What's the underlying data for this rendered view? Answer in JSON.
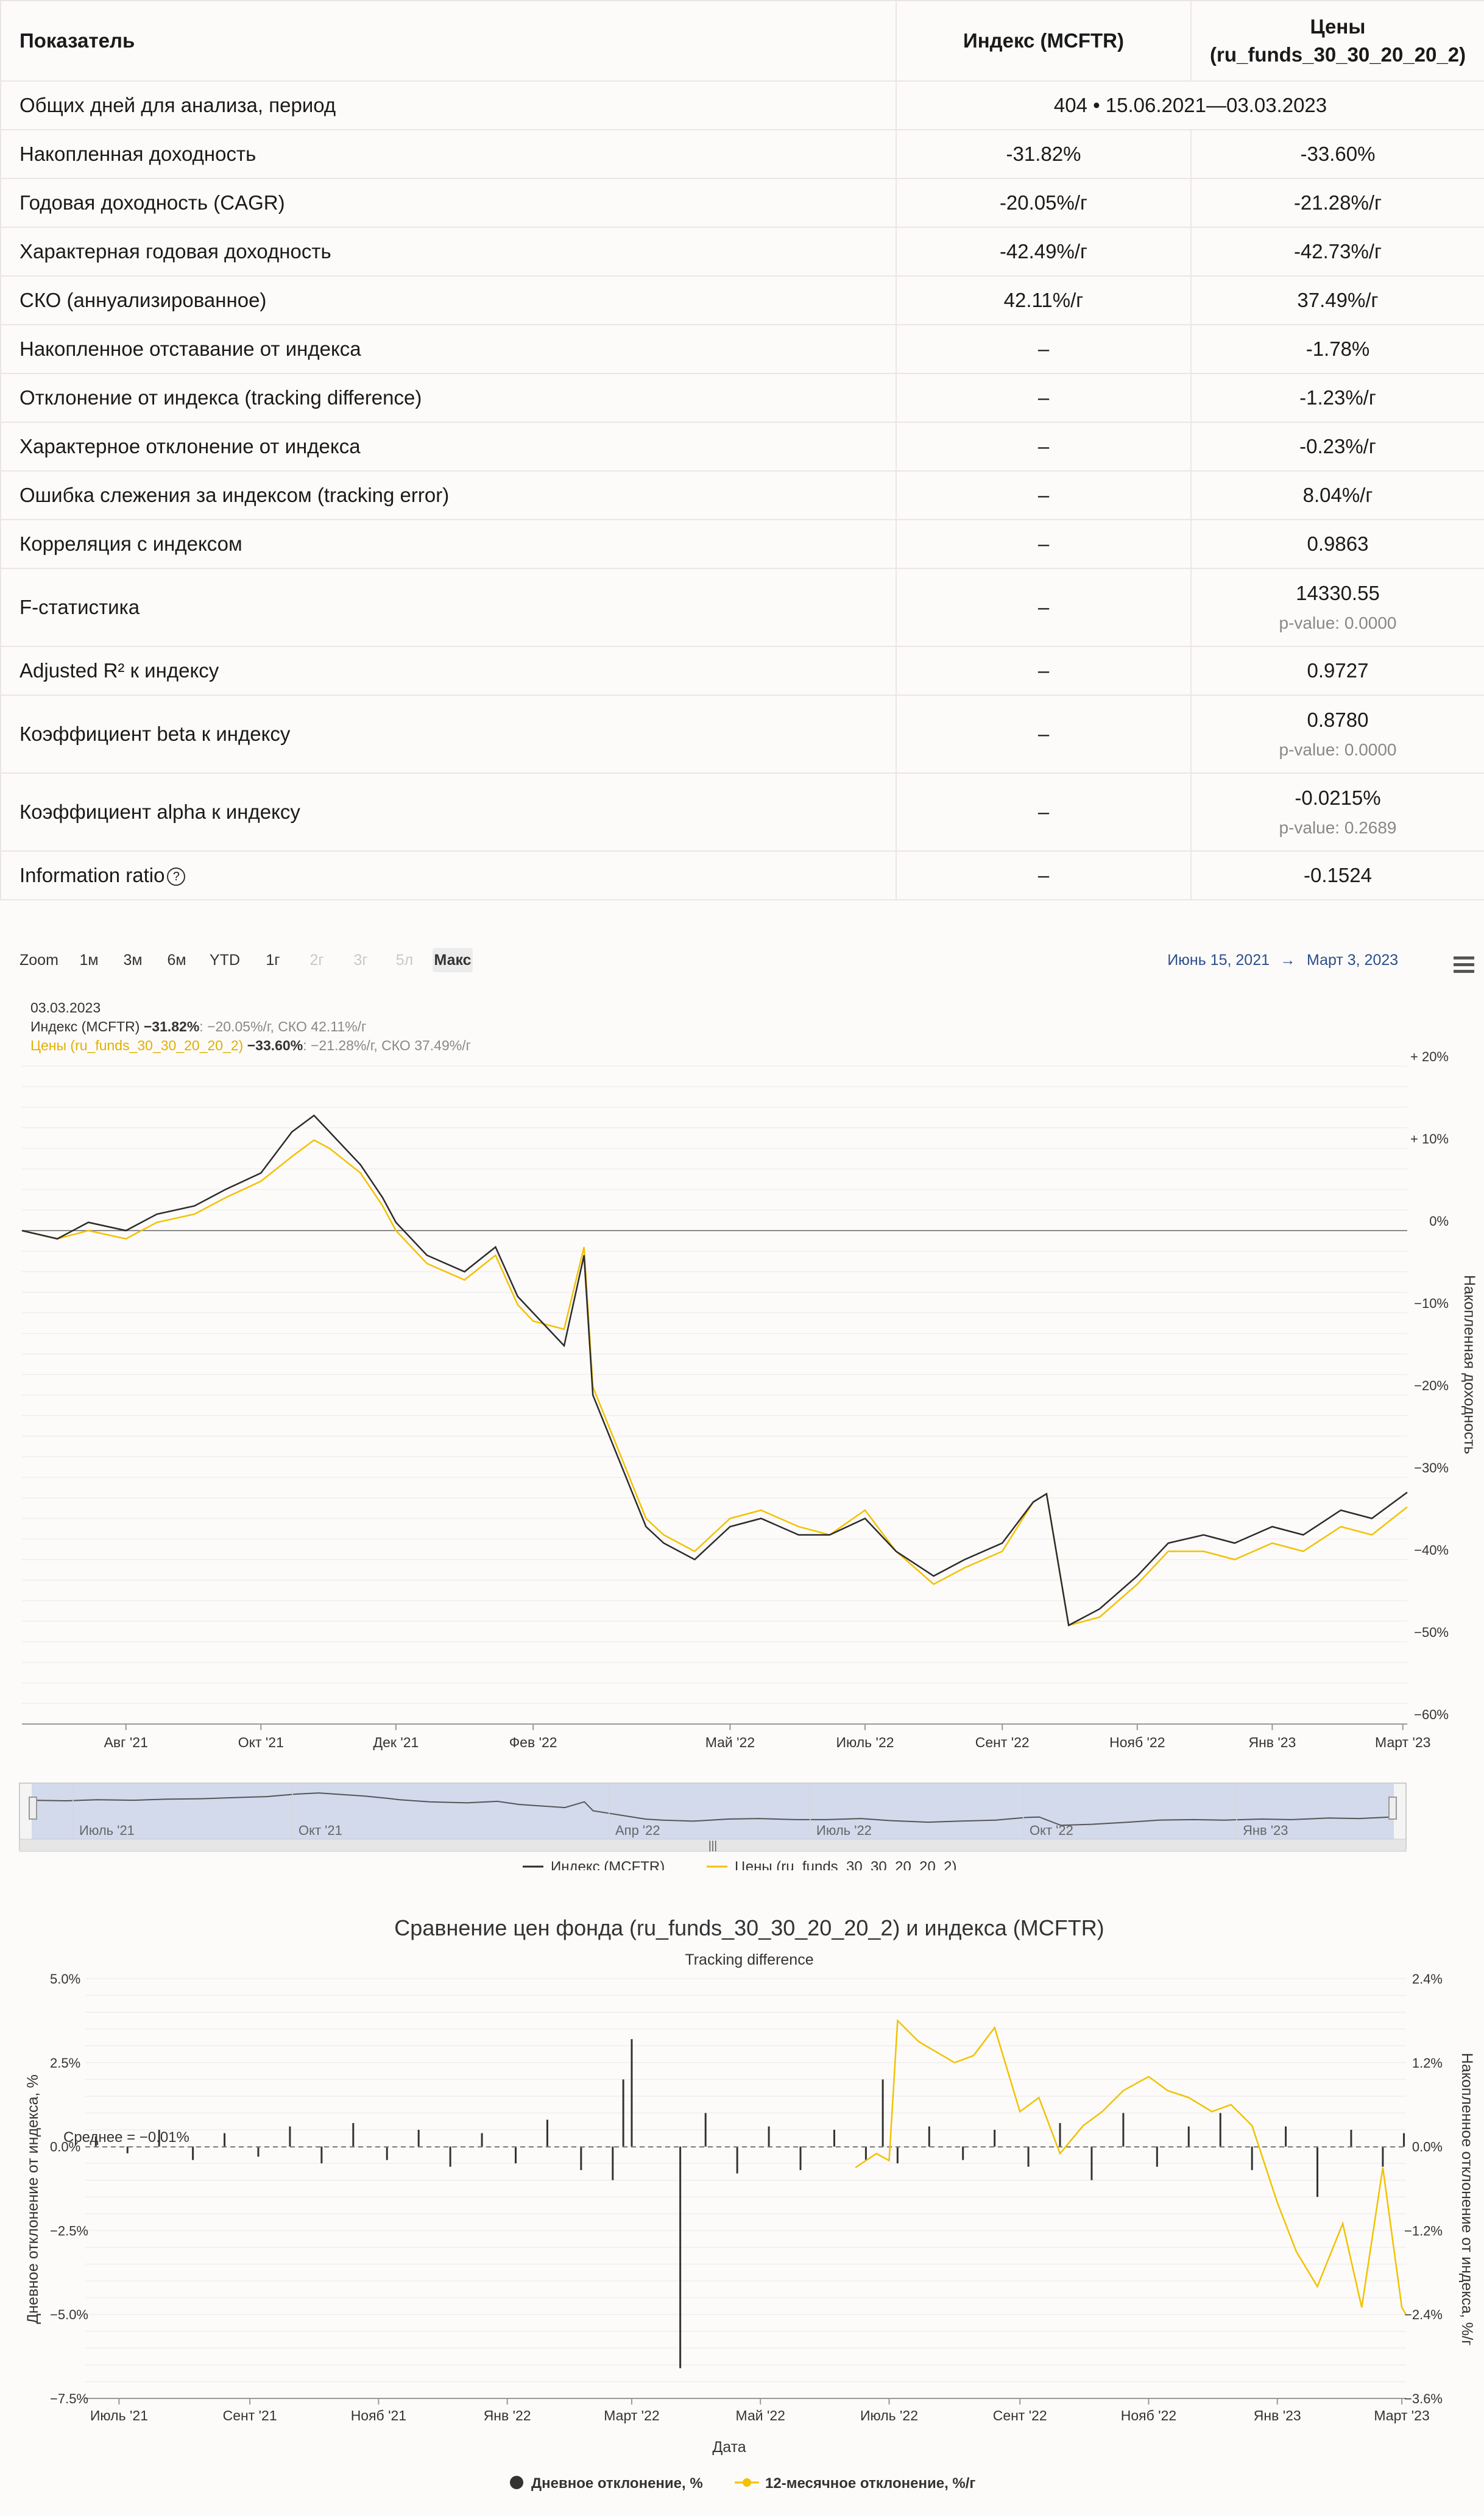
{
  "table": {
    "headers": [
      "Показатель",
      "Индекс (MCFTR)",
      "Цены (ru_funds_30_30_20_20_2)"
    ],
    "period_row": {
      "label": "Общих дней для анализа, период",
      "value": "404 • 15.06.2021—03.03.2023"
    },
    "rows": [
      {
        "label": "Накопленная доходность",
        "index": "-31.82%",
        "fund": "-33.60%"
      },
      {
        "label": "Годовая доходность (CAGR)",
        "index": "-20.05%/г",
        "fund": "-21.28%/г"
      },
      {
        "label": "Характерная годовая доходность",
        "index": "-42.49%/г",
        "fund": "-42.73%/г"
      },
      {
        "label": "СКО (аннуализированное)",
        "index": "42.11%/г",
        "fund": "37.49%/г"
      },
      {
        "label": "Накопленное отставание от индекса",
        "index": "–",
        "fund": "-1.78%"
      },
      {
        "label": "Отклонение от индекса (tracking difference)",
        "index": "–",
        "fund": "-1.23%/г"
      },
      {
        "label": "Характерное отклонение от индекса",
        "index": "–",
        "fund": "-0.23%/г"
      },
      {
        "label": "Ошибка слежения за индексом (tracking error)",
        "index": "–",
        "fund": "8.04%/г"
      },
      {
        "label": "Корреляция с индексом",
        "index": "–",
        "fund": "0.9863"
      },
      {
        "label": "F-статистика",
        "index": "–",
        "fund": "14330.55",
        "pvalue": "p-value: 0.0000"
      },
      {
        "label": "Adjusted R² к индексу",
        "index": "–",
        "fund": "0.9727"
      },
      {
        "label": "Коэффициент beta к индексу",
        "index": "–",
        "fund": "0.8780",
        "pvalue": "p-value: 0.0000"
      },
      {
        "label": "Коэффициент alpha к индексу",
        "index": "–",
        "fund": "-0.0215%",
        "pvalue": "p-value: 0.2689"
      },
      {
        "label": "Information ratio",
        "index": "–",
        "fund": "-0.1524",
        "info_icon": "question-circle-icon"
      }
    ]
  },
  "controls": {
    "zoom_label": "Zoom",
    "buttons": [
      {
        "label": "1м",
        "enabled": true
      },
      {
        "label": "3м",
        "enabled": true
      },
      {
        "label": "6м",
        "enabled": true
      },
      {
        "label": "YTD",
        "enabled": true
      },
      {
        "label": "1г",
        "enabled": true
      },
      {
        "label": "2г",
        "enabled": false
      },
      {
        "label": "3г",
        "enabled": false
      },
      {
        "label": "5л",
        "enabled": false
      },
      {
        "label": "Макс",
        "enabled": true,
        "selected": true
      }
    ],
    "range_from": "Июнь 15, 2021",
    "range_arrow": "→",
    "range_to": "Март 3, 2023",
    "menu_icon": "hamburger-menu-icon"
  },
  "tooltip": {
    "date": "03.03.2023",
    "index_name": "Индекс (MCFTR)",
    "index_value": "−31.82%",
    "index_rest": ": −20.05%/г, СКО 42.11%/г",
    "fund_name": "Цены (ru_funds_30_30_20_20_2)",
    "fund_value": "−33.60%",
    "fund_rest": ": −21.28%/г, СКО 37.49%/г"
  },
  "navigator": {
    "labels": [
      "Июль '21",
      "Окт '21",
      "Апр '22",
      "Июль '22",
      "Окт '22",
      "Янв '23"
    ],
    "scroll_grip": "|||"
  },
  "chart_data": [
    {
      "type": "line",
      "ylabel": "Накопленная доходность",
      "ylim": [
        -60,
        20
      ],
      "y_ticks": [
        "+ 20%",
        "+ 10%",
        "0%",
        "−10%",
        "−20%",
        "−30%",
        "−40%",
        "−50%",
        "−60%"
      ],
      "x_ticks": [
        "Авг '21",
        "Окт '21",
        "Дек '21",
        "Фев '22",
        "Май '22",
        "Июль '22",
        "Сент '22",
        "Нояб '22",
        "Янв '23",
        "Март '23"
      ],
      "x": [
        "2021-06-15",
        "2021-07-01",
        "2021-07-15",
        "2021-08-01",
        "2021-08-15",
        "2021-09-01",
        "2021-09-15",
        "2021-10-01",
        "2021-10-15",
        "2021-10-25",
        "2021-11-01",
        "2021-11-15",
        "2021-11-25",
        "2021-12-01",
        "2021-12-15",
        "2022-01-01",
        "2022-01-15",
        "2022-01-25",
        "2022-02-01",
        "2022-02-15",
        "2022-02-24",
        "2022-02-28",
        "2022-03-24",
        "2022-04-01",
        "2022-04-15",
        "2022-05-01",
        "2022-05-15",
        "2022-06-01",
        "2022-06-15",
        "2022-07-01",
        "2022-07-15",
        "2022-08-01",
        "2022-08-15",
        "2022-09-01",
        "2022-09-15",
        "2022-09-21",
        "2022-10-01",
        "2022-10-15",
        "2022-11-01",
        "2022-11-15",
        "2022-12-01",
        "2022-12-15",
        "2023-01-01",
        "2023-01-15",
        "2023-02-01",
        "2023-02-15",
        "2023-03-03"
      ],
      "series": [
        {
          "name": "Индекс (MCFTR)",
          "color": "#2b2b2b",
          "values": [
            0,
            -1,
            1,
            0,
            2,
            3,
            5,
            7,
            12,
            14,
            12,
            8,
            4,
            1,
            -3,
            -5,
            -2,
            -8,
            -10,
            -14,
            -3,
            -20,
            -36,
            -38,
            -40,
            -36,
            -35,
            -37,
            -37,
            -35,
            -39,
            -42,
            -40,
            -38,
            -33,
            -32,
            -48,
            -46,
            -42,
            -38,
            -37,
            -38,
            -36,
            -37,
            -34,
            -35,
            -31.82
          ]
        },
        {
          "name": "Цены (ru_funds_30_30_20_20_2)",
          "color": "#f2c200",
          "values": [
            0,
            -1,
            0,
            -1,
            1,
            2,
            4,
            6,
            9,
            11,
            10,
            7,
            3,
            0,
            -4,
            -6,
            -3,
            -9,
            -11,
            -12,
            -2,
            -19,
            -35,
            -37,
            -39,
            -35,
            -34,
            -36,
            -37,
            -34,
            -39,
            -43,
            -41,
            -39,
            -33,
            -32,
            -48,
            -47,
            -43,
            -39,
            -39,
            -40,
            -38,
            -39,
            -36,
            -37,
            -33.6
          ]
        }
      ],
      "legend": "bottom"
    },
    {
      "type": "bar",
      "title": "Сравнение цен фонда (ru_funds_30_30_20_20_2) и индекса (MCFTR)",
      "subtitle": "Tracking difference",
      "xlabel": "Дата",
      "ylabel": "Дневное отклонение от индекса, %",
      "ylabel_right": "Накопленное отклонение от индекса, %/г",
      "ylim": [
        -7.5,
        5.0
      ],
      "ylim_right": [
        -3.6,
        2.4
      ],
      "y_ticks": [
        "5.0%",
        "2.5%",
        "0.0%",
        "−2.5%",
        "−5.0%",
        "−7.5%"
      ],
      "y_ticks_right": [
        "2.4%",
        "1.2%",
        "0.0%",
        "−1.2%",
        "−2.4%",
        "−3.6%"
      ],
      "x_ticks": [
        "Июль '21",
        "Сент '21",
        "Нояб '21",
        "Янв '22",
        "Март '22",
        "Май '22",
        "Июль '22",
        "Сент '22",
        "Нояб '22",
        "Янв '23",
        "Март '23"
      ],
      "mean_label": "Среднее = −0.01%",
      "mean": -0.01,
      "daily_deviation": {
        "name": "Дневное отклонение, %",
        "color": "#333333",
        "x": [
          "2021-06-20",
          "2021-07-05",
          "2021-07-20",
          "2021-08-05",
          "2021-08-20",
          "2021-09-05",
          "2021-09-20",
          "2021-10-05",
          "2021-10-20",
          "2021-11-05",
          "2021-11-20",
          "2021-12-05",
          "2021-12-20",
          "2022-01-05",
          "2022-01-20",
          "2022-02-05",
          "2022-02-20",
          "2022-02-25",
          "2022-03-01",
          "2022-03-24",
          "2022-04-05",
          "2022-04-20",
          "2022-05-05",
          "2022-05-20",
          "2022-06-05",
          "2022-06-20",
          "2022-06-28",
          "2022-07-05",
          "2022-07-20",
          "2022-08-05",
          "2022-08-20",
          "2022-09-05",
          "2022-09-20",
          "2022-10-05",
          "2022-10-20",
          "2022-11-05",
          "2022-11-20",
          "2022-12-05",
          "2022-12-20",
          "2023-01-05",
          "2023-01-20",
          "2023-02-05",
          "2023-02-20",
          "2023-03-02"
        ],
        "values": [
          0.3,
          -0.2,
          0.5,
          -0.4,
          0.4,
          -0.3,
          0.6,
          -0.5,
          0.7,
          -0.4,
          0.5,
          -0.6,
          0.4,
          -0.5,
          0.8,
          -0.7,
          -1.0,
          2.0,
          3.2,
          -6.6,
          1.0,
          -0.8,
          0.6,
          -0.7,
          0.5,
          -0.4,
          2.0,
          -0.5,
          0.6,
          -0.4,
          0.5,
          -0.6,
          0.7,
          -1.0,
          1.0,
          -0.6,
          0.6,
          1.0,
          -0.7,
          0.6,
          -1.5,
          0.5,
          -0.6,
          0.4
        ]
      },
      "twelve_month_deviation": {
        "name": "12-месячное отклонение, %/г",
        "color": "#f2c200",
        "x": [
          "2022-06-15",
          "2022-06-25",
          "2022-07-01",
          "2022-07-05",
          "2022-07-15",
          "2022-08-01",
          "2022-08-10",
          "2022-08-20",
          "2022-09-01",
          "2022-09-10",
          "2022-09-20",
          "2022-10-01",
          "2022-10-10",
          "2022-10-20",
          "2022-11-01",
          "2022-11-10",
          "2022-11-20",
          "2022-12-01",
          "2022-12-10",
          "2022-12-20",
          "2023-01-01",
          "2023-01-10",
          "2023-01-20",
          "2023-02-01",
          "2023-02-10",
          "2023-02-20",
          "2023-03-01",
          "2023-03-03"
        ],
        "values": [
          -0.3,
          -0.1,
          -0.2,
          1.8,
          1.5,
          1.2,
          1.3,
          1.7,
          0.5,
          0.7,
          -0.1,
          0.3,
          0.5,
          0.8,
          1.0,
          0.8,
          0.7,
          0.5,
          0.6,
          0.3,
          -0.8,
          -1.5,
          -2.0,
          -1.1,
          -2.3,
          -0.3,
          -2.3,
          -2.4
        ]
      },
      "legend": "bottom"
    }
  ]
}
